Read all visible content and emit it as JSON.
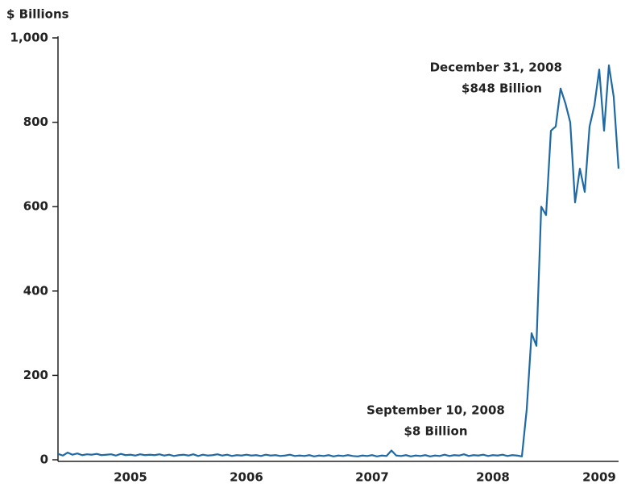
{
  "chart_data": {
    "type": "line",
    "y_label": "$ Billions",
    "categories": [
      null,
      null,
      null,
      null,
      null,
      null,
      null,
      null,
      null,
      null,
      null,
      null,
      null,
      null,
      null,
      "2005",
      null,
      null,
      null,
      null,
      null,
      null,
      null,
      null,
      null,
      null,
      null,
      null,
      null,
      null,
      null,
      null,
      null,
      null,
      null,
      null,
      null,
      null,
      null,
      "2006",
      null,
      null,
      null,
      null,
      null,
      null,
      null,
      null,
      null,
      null,
      null,
      null,
      null,
      null,
      null,
      null,
      null,
      null,
      null,
      null,
      null,
      null,
      null,
      null,
      null,
      "2007",
      null,
      null,
      null,
      null,
      null,
      null,
      null,
      null,
      null,
      null,
      null,
      null,
      null,
      null,
      null,
      null,
      null,
      null,
      null,
      null,
      null,
      null,
      null,
      null,
      "2008",
      null,
      null,
      null,
      null,
      null,
      null,
      null,
      null,
      null,
      null,
      null,
      null,
      null,
      null,
      null,
      null,
      null,
      null,
      null,
      null,
      null,
      "2009",
      null,
      null,
      null,
      null
    ],
    "values": [
      14,
      10,
      17,
      12,
      15,
      11,
      13,
      12,
      14,
      11,
      12,
      13,
      10,
      14,
      11,
      12,
      10,
      13,
      11,
      12,
      11,
      13,
      10,
      12,
      9,
      11,
      12,
      10,
      13,
      9,
      12,
      10,
      11,
      13,
      10,
      12,
      9,
      11,
      10,
      12,
      10,
      11,
      9,
      12,
      10,
      11,
      9,
      10,
      12,
      9,
      10,
      9,
      11,
      8,
      10,
      9,
      11,
      8,
      10,
      9,
      11,
      9,
      8,
      10,
      9,
      11,
      8,
      10,
      9,
      22,
      10,
      9,
      11,
      8,
      10,
      9,
      11,
      8,
      10,
      9,
      12,
      9,
      11,
      10,
      13,
      9,
      11,
      10,
      12,
      9,
      11,
      10,
      12,
      9,
      11,
      10,
      8,
      120,
      300,
      270,
      600,
      580,
      780,
      790,
      880,
      845,
      800,
      610,
      690,
      635,
      790,
      840,
      925,
      780,
      935,
      860,
      690
    ],
    "color": "#1f6aa5",
    "ylim": [
      0,
      1000
    ],
    "yticks": [
      0,
      200,
      400,
      600,
      800,
      {
        "value": 1000,
        "label": "1,000"
      }
    ],
    "annotations": [
      [
        "December 31, 2008",
        "$848 Billion"
      ],
      [
        "September 10, 2008",
        "$8 Billion"
      ]
    ]
  }
}
